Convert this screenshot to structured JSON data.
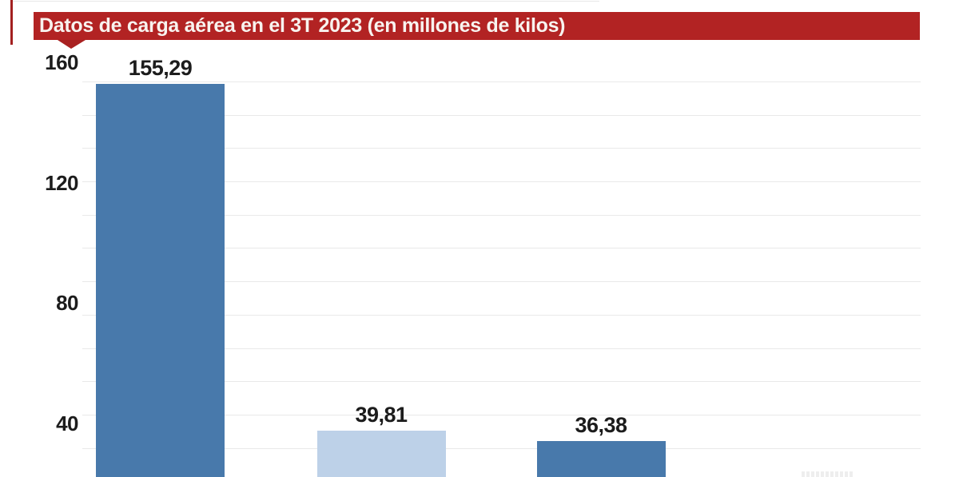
{
  "banner": {
    "title": "Datos de carga aérea en el 3T 2023 (en millones de kilos)",
    "bg_color": "#b22323",
    "tail_color": "#a92121",
    "text_color": "#f8f3ef"
  },
  "accents": {
    "left_rule_color": "#a32020",
    "gridline_color": "#e9e9e9",
    "label_color": "#1c1c1c"
  },
  "chart_data": {
    "type": "bar",
    "title": "Datos de carga aérea en el 3T 2023 (en millones de kilos)",
    "values": [
      155.29,
      39.81,
      36.38
    ],
    "value_labels": [
      "155,29",
      "39,81",
      "36,38"
    ],
    "bar_colors": [
      "#4879ab",
      "#bdd1e8",
      "#4879ab"
    ],
    "categories": [],
    "yticks": [
      160,
      120,
      80,
      40
    ],
    "ylim": [
      0,
      160
    ],
    "grid": true,
    "legend": "none",
    "x_axis_visible": false,
    "bottom_cropped": true
  }
}
